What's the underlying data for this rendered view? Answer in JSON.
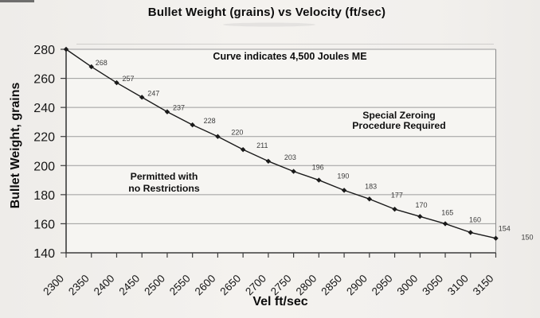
{
  "chart_data": {
    "type": "line",
    "title": "Bullet Weight (grains) vs Velocity (ft/sec)",
    "xlabel": "Vel ft/sec",
    "ylabel": "Bullet Weight, grains",
    "x": [
      2300,
      2350,
      2400,
      2450,
      2500,
      2550,
      2600,
      2650,
      2700,
      2750,
      2800,
      2850,
      2900,
      2950,
      3000,
      3050,
      3100,
      3150
    ],
    "series": [
      {
        "values": [
          280,
          268,
          257,
          247,
          237,
          228,
          220,
          211,
          203,
          196,
          190,
          183,
          177,
          170,
          165,
          160,
          154,
          150
        ]
      }
    ],
    "point_labels": [
      "",
      "268",
      "257",
      "247",
      "237",
      "228",
      "220",
      "211",
      "203",
      "196",
      "190",
      "183",
      "177",
      "170",
      "165",
      "160",
      "154",
      "150"
    ],
    "xlim": [
      2300,
      3150
    ],
    "ylim": [
      140,
      280
    ],
    "y_ticks": [
      140,
      160,
      180,
      200,
      220,
      240,
      260,
      280
    ],
    "x_tick_step": 50,
    "grid": "horizontal",
    "legend": "none",
    "line_color": "#1a1a1a",
    "marker": "diamond",
    "marker_color": "#1a1a1a",
    "gridline_color": "#9c9c9c",
    "axis_color": "#3c3c3c",
    "annotations": {
      "curve_note": "Curve indicates 4,500 Joules ME",
      "special_zone_line1": "Special Zeroing",
      "special_zone_line2": "Procedure Required",
      "permitted_zone_line1": "Permitted with",
      "permitted_zone_line2": "no Restrictions"
    }
  }
}
